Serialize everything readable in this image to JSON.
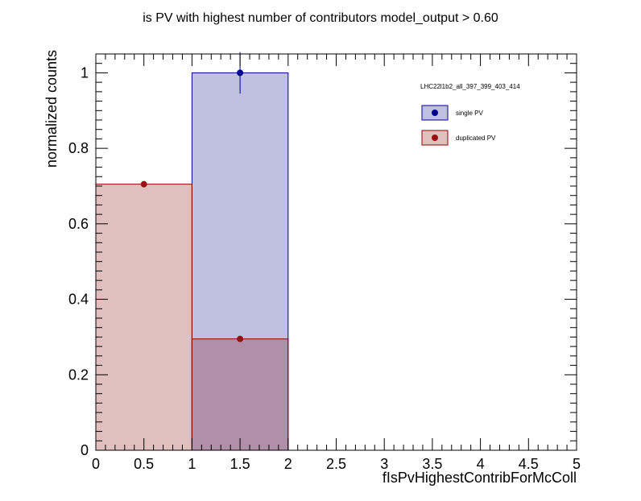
{
  "chart_data": {
    "type": "bar",
    "title": "is PV with highest number of contributors  model_output > 0.60",
    "xlabel": "fIsPvHighestContribForMcColl",
    "ylabel": "normalized counts",
    "xlim": [
      0,
      5
    ],
    "ylim": [
      0,
      1.05
    ],
    "x_ticks": [
      0,
      0.5,
      1,
      1.5,
      2,
      2.5,
      3,
      3.5,
      4,
      4.5,
      5
    ],
    "x_tick_labels": [
      "0",
      "0.5",
      "1",
      "1.5",
      "2",
      "2.5",
      "3",
      "3.5",
      "4",
      "4.5",
      "5"
    ],
    "y_ticks": [
      0,
      0.2,
      0.4,
      0.6,
      0.8,
      1
    ],
    "y_tick_labels": [
      "0",
      "0.2",
      "0.4",
      "0.6",
      "0.8",
      "1"
    ],
    "legend_header": "LHC22l1b2_all_397_399_403_414",
    "legend_placement": "top-right",
    "grid": false,
    "series": [
      {
        "name": "single PV",
        "fill_color": "#bfc0e2",
        "line_color": "#00008c",
        "marker_color": "#00008c",
        "bins": [
          {
            "low": 0,
            "high": 1,
            "value": 0,
            "error": 0
          },
          {
            "low": 1,
            "high": 2,
            "value": 1.0,
            "error": 0.055
          }
        ]
      },
      {
        "name": "duplicated PV",
        "fill_color": "#e0bfbf",
        "line_color": "#8c0000",
        "marker_color": "#9a1010",
        "bins": [
          {
            "low": 0,
            "high": 1,
            "value": 0.705,
            "error": 0.005
          },
          {
            "low": 1,
            "high": 2,
            "value": 0.295,
            "error": 0.004
          }
        ]
      }
    ],
    "overlap_fill_color": "#af8fa9"
  }
}
